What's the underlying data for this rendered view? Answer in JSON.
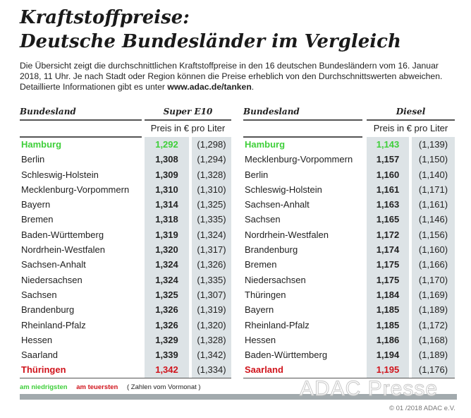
{
  "title": [
    "Kraftstoffpreise:",
    "Deutsche Bundesländer im Vergleich"
  ],
  "intro": {
    "text": "Die Übersicht zeigt die durchschnittlichen Kraftstoffpreise in den 16 deutschen Bundesländern vom 16. Januar 2018, 11 Uhr. Je nach Stadt oder Region können die Preise erheblich von den Durchschnittswerten abweichen. Detaillierte Informationen gibt es unter ",
    "link": "www.adac.de/tanken",
    "end": "."
  },
  "colors": {
    "lowest": "#3fcf3a",
    "highest": "#d0141c",
    "cell": "#dde3e6"
  },
  "tables": [
    {
      "col_name": "Bundesland",
      "fuel": "Super E10",
      "unit": "Preis in € pro Liter",
      "rows": [
        [
          "Hamburg",
          "1,292",
          "(1,298)"
        ],
        [
          "Berlin",
          "1,308",
          "(1,294)"
        ],
        [
          "Schleswig-Holstein",
          "1,309",
          "(1,328)"
        ],
        [
          "Mecklenburg-Vorpommern",
          "1,310",
          "(1,310)"
        ],
        [
          "Bayern",
          "1,314",
          "(1,325)"
        ],
        [
          "Bremen",
          "1,318",
          "(1,335)"
        ],
        [
          "Baden-Württemberg",
          "1,319",
          "(1,324)"
        ],
        [
          "Nordrhein-Westfalen",
          "1,320",
          "(1,317)"
        ],
        [
          "Sachsen-Anhalt",
          "1,324",
          "(1,326)"
        ],
        [
          "Niedersachsen",
          "1,324",
          "(1,335)"
        ],
        [
          "Sachsen",
          "1,325",
          "(1,307)"
        ],
        [
          "Brandenburg",
          "1,326",
          "(1,319)"
        ],
        [
          "Rheinland-Pfalz",
          "1,326",
          "(1,320)"
        ],
        [
          "Hessen",
          "1,329",
          "(1,328)"
        ],
        [
          "Saarland",
          "1,339",
          "(1,342)"
        ],
        [
          "Thüringen",
          "1,342",
          "(1,334)"
        ]
      ]
    },
    {
      "col_name": "Bundesland",
      "fuel": "Diesel",
      "unit": "Preis in € pro Liter",
      "rows": [
        [
          "Hamburg",
          "1,143",
          "(1,139)"
        ],
        [
          "Mecklenburg-Vorpommern",
          "1,157",
          "(1,150)"
        ],
        [
          "Berlin",
          "1,160",
          "(1,140)"
        ],
        [
          "Schleswig-Holstein",
          "1,161",
          "(1,171)"
        ],
        [
          "Sachsen-Anhalt",
          "1,163",
          "(1,161)"
        ],
        [
          "Sachsen",
          "1,165",
          "(1,146)"
        ],
        [
          "Nordrhein-Westfalen",
          "1,172",
          "(1,156)"
        ],
        [
          "Brandenburg",
          "1,174",
          "(1,160)"
        ],
        [
          "Bremen",
          "1,175",
          "(1,166)"
        ],
        [
          "Niedersachsen",
          "1,175",
          "(1,170)"
        ],
        [
          "Thüringen",
          "1,184",
          "(1,169)"
        ],
        [
          "Bayern",
          "1,185",
          "(1,189)"
        ],
        [
          "Rheinland-Pfalz",
          "1,185",
          "(1,172)"
        ],
        [
          "Hessen",
          "1,186",
          "(1,168)"
        ],
        [
          "Baden-Württemberg",
          "1,194",
          "(1,189)"
        ],
        [
          "Saarland",
          "1,195",
          "(1,176)"
        ]
      ]
    }
  ],
  "legend": {
    "lowest": "am niedrigsten",
    "highest": "am teuersten",
    "previous": "( Zahlen vom Vormonat )"
  },
  "watermark": "ADAC Presse",
  "copyright": "© 01 /2018 ADAC e.V."
}
